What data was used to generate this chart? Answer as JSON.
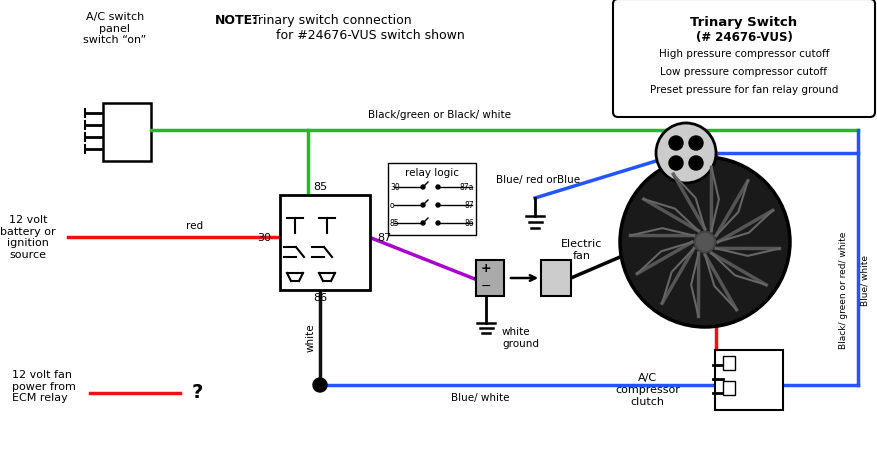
{
  "bg_color": "#ffffff",
  "note_bold": "NOTE:",
  "note_rest": "  Trinary switch connection\n       for #24676-VUS switch shown",
  "trinary_title": "Trinary Switch",
  "trinary_sub": "(# 24676-VUS)",
  "trinary_lines": [
    "High pressure compressor cutoff",
    "Low pressure compressor cutoff",
    "Preset pressure for fan relay ground"
  ],
  "label_ac_switch": "A/C switch\npanel\nswitch “on”",
  "label_12v": "12 volt\nbattery or\nignition\nsource",
  "label_ecm": "12 volt fan\npower from\nECM relay",
  "label_relay_logic": "relay logic",
  "label_electric_fan": "Electric\nfan",
  "label_ac_compressor": "A/C\ncompressor\nclutch",
  "label_white_ground": "white\nground",
  "label_blue_white_bot": "Blue/ white",
  "label_black_green_top": "Black/green or Black/ white",
  "label_blue_red": "Blue/ red orBlue",
  "label_purple": "purple",
  "label_red": "red",
  "label_white": "white",
  "label_30": "30",
  "label_85": "85",
  "label_86": "86",
  "label_87": "87",
  "label_black_green_right": "Black/ green or red/ white",
  "label_blue_white_right": "Blue/ white",
  "c_green": "#22bb22",
  "c_blue": "#2255ff",
  "c_red": "#ee1111",
  "c_purple": "#aa00cc",
  "c_black": "#111111",
  "figsize": [
    8.77,
    4.73
  ],
  "dpi": 100
}
